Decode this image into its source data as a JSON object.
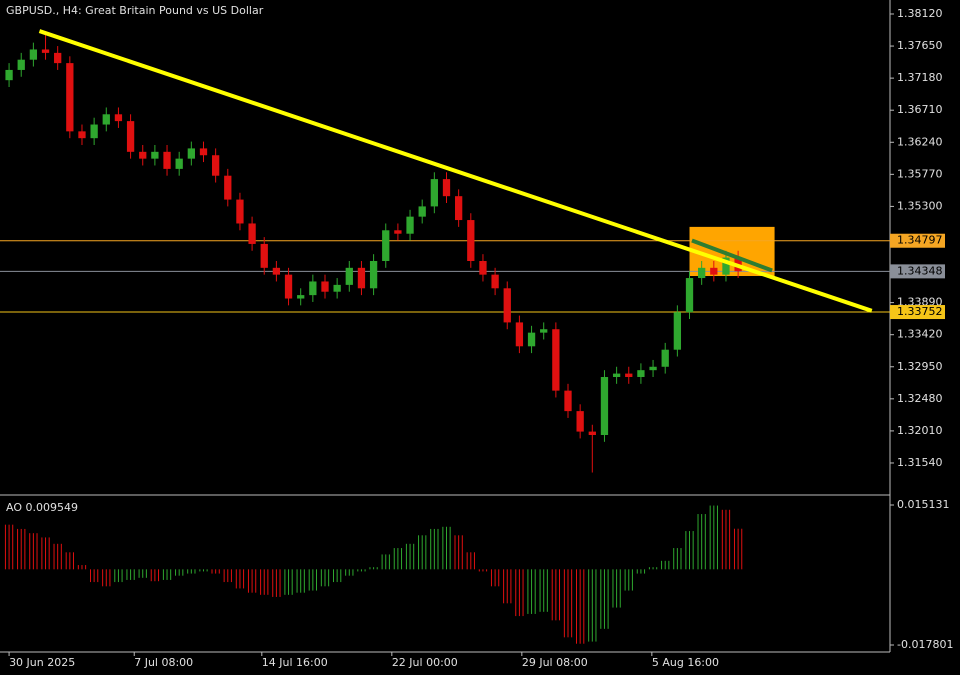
{
  "chart_data": [
    {
      "type": "candlestick",
      "title": "GBPUSD., H4:  Great Britain Pound vs US Dollar",
      "up_color": "#2fa82f",
      "down_color": "#e01010",
      "open": [
        1.3715,
        1.373,
        1.3745,
        1.376,
        1.3755,
        1.374,
        1.364,
        1.363,
        1.365,
        1.3665,
        1.3655,
        1.361,
        1.36,
        1.361,
        1.3585,
        1.36,
        1.3615,
        1.3605,
        1.3575,
        1.354,
        1.3505,
        1.3475,
        1.344,
        1.343,
        1.3395,
        1.34,
        1.342,
        1.3405,
        1.3415,
        1.344,
        1.341,
        1.345,
        1.3495,
        1.349,
        1.3515,
        1.353,
        1.357,
        1.3545,
        1.351,
        1.345,
        1.343,
        1.341,
        1.336,
        1.3325,
        1.3345,
        1.335,
        1.326,
        1.323,
        1.32,
        1.3195,
        1.328,
        1.3285,
        1.328,
        1.329,
        1.3295,
        1.332,
        1.3375,
        1.3425,
        1.344,
        1.343,
        1.3455
      ],
      "high": [
        1.374,
        1.3755,
        1.377,
        1.3787,
        1.3765,
        1.375,
        1.365,
        1.366,
        1.3675,
        1.3675,
        1.3665,
        1.362,
        1.362,
        1.362,
        1.361,
        1.3625,
        1.3625,
        1.3615,
        1.3585,
        1.355,
        1.3515,
        1.3485,
        1.345,
        1.344,
        1.341,
        1.343,
        1.343,
        1.3425,
        1.345,
        1.345,
        1.346,
        1.3505,
        1.3505,
        1.3525,
        1.354,
        1.358,
        1.358,
        1.3555,
        1.352,
        1.346,
        1.344,
        1.342,
        1.337,
        1.3355,
        1.336,
        1.336,
        1.327,
        1.324,
        1.321,
        1.329,
        1.3295,
        1.3295,
        1.33,
        1.3305,
        1.333,
        1.3385,
        1.3435,
        1.345,
        1.345,
        1.3465,
        1.3465
      ],
      "low": [
        1.3705,
        1.372,
        1.3735,
        1.3745,
        1.373,
        1.363,
        1.362,
        1.362,
        1.364,
        1.3645,
        1.36,
        1.359,
        1.359,
        1.3575,
        1.3575,
        1.359,
        1.3595,
        1.3565,
        1.353,
        1.3495,
        1.3465,
        1.343,
        1.342,
        1.3385,
        1.3385,
        1.339,
        1.3395,
        1.3395,
        1.3405,
        1.34,
        1.34,
        1.344,
        1.348,
        1.348,
        1.3505,
        1.352,
        1.3535,
        1.35,
        1.344,
        1.342,
        1.34,
        1.335,
        1.3315,
        1.3315,
        1.3335,
        1.325,
        1.322,
        1.319,
        1.314,
        1.3185,
        1.327,
        1.327,
        1.327,
        1.328,
        1.3285,
        1.331,
        1.3365,
        1.3415,
        1.342,
        1.342,
        1.3425
      ],
      "close": [
        1.373,
        1.3745,
        1.376,
        1.3755,
        1.374,
        1.364,
        1.363,
        1.365,
        1.3665,
        1.3655,
        1.361,
        1.36,
        1.361,
        1.3585,
        1.36,
        1.3615,
        1.3605,
        1.3575,
        1.354,
        1.3505,
        1.3475,
        1.344,
        1.343,
        1.3395,
        1.34,
        1.342,
        1.3405,
        1.3415,
        1.344,
        1.341,
        1.345,
        1.3495,
        1.349,
        1.3515,
        1.353,
        1.357,
        1.3545,
        1.351,
        1.345,
        1.343,
        1.341,
        1.336,
        1.3325,
        1.3345,
        1.335,
        1.326,
        1.323,
        1.32,
        1.3195,
        1.328,
        1.3285,
        1.328,
        1.329,
        1.3295,
        1.332,
        1.3375,
        1.3425,
        1.344,
        1.343,
        1.3455,
        1.3435
      ],
      "xlim": [
        -0.5,
        72.5
      ],
      "ylim": [
        1.311,
        1.38281
      ],
      "yticks": [
        {
          "value": 1.3812,
          "label": "1.38120"
        },
        {
          "value": 1.3765,
          "label": "1.37650"
        },
        {
          "value": 1.3718,
          "label": "1.37180"
        },
        {
          "value": 1.3671,
          "label": "1.36710"
        },
        {
          "value": 1.3624,
          "label": "1.36240"
        },
        {
          "value": 1.3577,
          "label": "1.35770"
        },
        {
          "value": 1.353,
          "label": "1.35300"
        },
        {
          "value": 1.3389,
          "label": "1.33890"
        },
        {
          "value": 1.3342,
          "label": "1.33420"
        },
        {
          "value": 1.3295,
          "label": "1.32950"
        },
        {
          "value": 1.3248,
          "label": "1.32480"
        },
        {
          "value": 1.3201,
          "label": "1.32010"
        },
        {
          "value": 1.3154,
          "label": "1.31540"
        }
      ],
      "xticks": [
        {
          "value": 0,
          "label": "30 Jun 2025"
        },
        {
          "value": 10.3,
          "label": "7 Jul 08:00"
        },
        {
          "value": 20.8,
          "label": "14 Jul 16:00"
        },
        {
          "value": 31.5,
          "label": "22 Jul 00:00"
        },
        {
          "value": 42.2,
          "label": "29 Jul 08:00"
        },
        {
          "value": 52.9,
          "label": "5 Aug 16:00"
        }
      ],
      "levels": [
        {
          "value": 1.34797,
          "color": "#f5a623"
        },
        {
          "value": 1.34348,
          "color": "#8a8f99"
        },
        {
          "value": 1.33752,
          "color": "#f5c518"
        }
      ],
      "rectangles": [
        {
          "x": [
            56,
            63
          ],
          "y": [
            1.3428,
            1.35
          ],
          "color": "#ffa500"
        }
      ],
      "trendlines": [
        {
          "x": [
            2.5,
            71
          ],
          "y": [
            1.3787,
            1.3377
          ],
          "color": "#ffff00",
          "width": 4
        },
        {
          "x": [
            56.2,
            62.8
          ],
          "y": [
            1.348,
            1.3436
          ],
          "color": "#2e7d32",
          "width": 4
        }
      ]
    },
    {
      "type": "bar",
      "title": "AO 0.009549",
      "up_color": "#2fa82f",
      "down_color": "#e01010",
      "values": [
        0.0105,
        0.0095,
        0.0085,
        0.0075,
        0.006,
        0.004,
        0.001,
        -0.003,
        -0.004,
        -0.003,
        -0.0025,
        -0.002,
        -0.0028,
        -0.0025,
        -0.0015,
        -0.001,
        -0.0005,
        -0.001,
        -0.003,
        -0.0045,
        -0.0055,
        -0.006,
        -0.0065,
        -0.006,
        -0.0055,
        -0.005,
        -0.004,
        -0.003,
        -0.0015,
        -0.0005,
        0.0005,
        0.0035,
        0.005,
        0.006,
        0.008,
        0.0095,
        0.01,
        0.008,
        0.004,
        -0.0005,
        -0.004,
        -0.008,
        -0.011,
        -0.0105,
        -0.01,
        -0.012,
        -0.016,
        -0.0175,
        -0.017,
        -0.014,
        -0.009,
        -0.005,
        -0.001,
        0.0005,
        0.002,
        0.005,
        0.009,
        0.013,
        0.015,
        0.014,
        0.009549
      ],
      "ylim": [
        -0.01898,
        0.01701
      ],
      "yticks": [
        0.015131,
        -0.017801
      ]
    }
  ]
}
